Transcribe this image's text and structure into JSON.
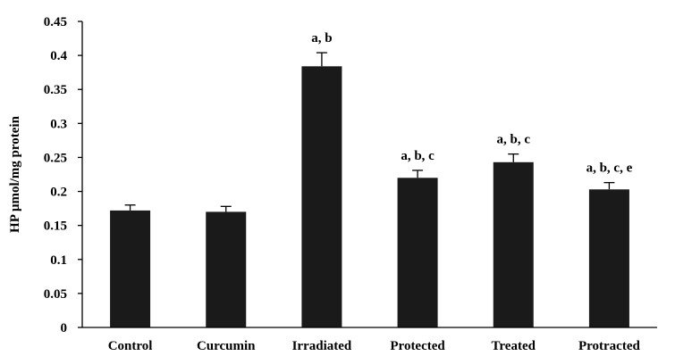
{
  "chart_data": {
    "type": "bar",
    "categories": [
      "Control",
      "Curcumin",
      "Irradiated",
      "Protected",
      "Treated",
      "Protracted"
    ],
    "values": [
      0.172,
      0.17,
      0.384,
      0.22,
      0.243,
      0.203
    ],
    "errors": [
      0.008,
      0.008,
      0.02,
      0.011,
      0.012,
      0.01
    ],
    "annotations": [
      "",
      "",
      "a, b",
      "a, b, c",
      "a, b, c",
      "a, b, c, e"
    ],
    "ylabel": "HP µmol/mg protein",
    "ylim": [
      0,
      0.45
    ],
    "yticks": [
      "0",
      "0.05",
      "0.1",
      "0.15",
      "0.2",
      "0.25",
      "0.3",
      "0.35",
      "0.4",
      "0.45"
    ],
    "grid": false,
    "bar_color": "#1a1a1a"
  }
}
